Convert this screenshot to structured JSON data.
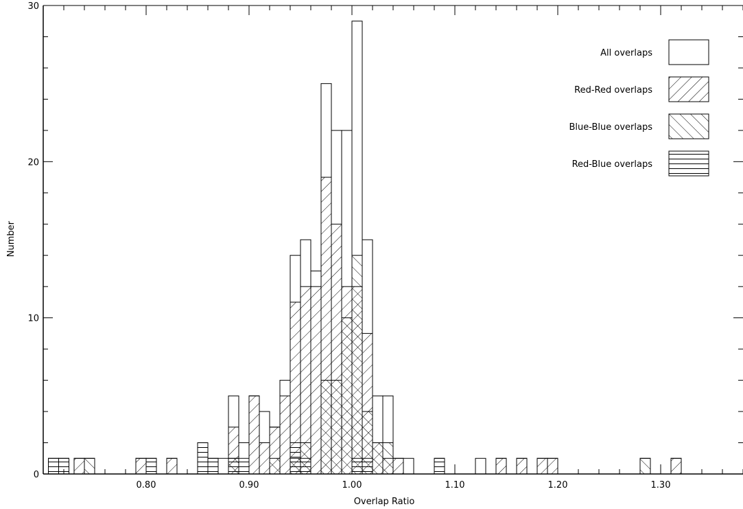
{
  "chart_data": {
    "type": "bar",
    "subtype": "step-histogram",
    "title": "",
    "xlabel": "Overlap Ratio",
    "ylabel": "Number",
    "xlim": [
      0.7,
      1.38
    ],
    "ylim": [
      0,
      30
    ],
    "x_ticks": [
      0.8,
      0.9,
      1.0,
      1.1,
      1.2,
      1.3
    ],
    "x_tick_labels": [
      "0.80",
      "0.90",
      "1.00",
      "1.10",
      "1.20",
      "1.30"
    ],
    "y_ticks": [
      0,
      10,
      20,
      30
    ],
    "y_tick_labels": [
      "0",
      "10",
      "20",
      "30"
    ],
    "y_minor_step": 2,
    "x_minor_step": 0.02,
    "bin_width": 0.01,
    "legend_position": "top-right",
    "grid": false,
    "series": [
      {
        "name": "All overlaps",
        "fill": "none",
        "bins": [
          [
            0.705,
            1
          ],
          [
            0.715,
            1
          ],
          [
            0.73,
            1
          ],
          [
            0.74,
            1
          ],
          [
            0.79,
            1
          ],
          [
            0.8,
            1
          ],
          [
            0.82,
            1
          ],
          [
            0.85,
            2
          ],
          [
            0.86,
            1
          ],
          [
            0.87,
            1
          ],
          [
            0.88,
            5
          ],
          [
            0.89,
            2
          ],
          [
            0.9,
            5
          ],
          [
            0.91,
            4
          ],
          [
            0.92,
            3
          ],
          [
            0.93,
            6
          ],
          [
            0.94,
            14
          ],
          [
            0.95,
            15
          ],
          [
            0.96,
            13
          ],
          [
            0.97,
            25
          ],
          [
            0.98,
            22
          ],
          [
            0.99,
            22
          ],
          [
            1.0,
            29
          ],
          [
            1.01,
            15
          ],
          [
            1.02,
            5
          ],
          [
            1.03,
            5
          ],
          [
            1.04,
            1
          ],
          [
            1.05,
            1
          ],
          [
            1.08,
            1
          ],
          [
            1.12,
            1
          ],
          [
            1.14,
            1
          ],
          [
            1.16,
            1
          ],
          [
            1.18,
            1
          ],
          [
            1.19,
            1
          ],
          [
            1.28,
            1
          ],
          [
            1.31,
            1
          ]
        ]
      },
      {
        "name": "Red-Red overlaps",
        "fill": "hatch-diagonal-up",
        "bins": [
          [
            0.73,
            1
          ],
          [
            0.79,
            1
          ],
          [
            0.82,
            1
          ],
          [
            0.88,
            3
          ],
          [
            0.9,
            5
          ],
          [
            0.91,
            2
          ],
          [
            0.92,
            3
          ],
          [
            0.93,
            5
          ],
          [
            0.94,
            11
          ],
          [
            0.95,
            12
          ],
          [
            0.96,
            12
          ],
          [
            0.97,
            19
          ],
          [
            0.98,
            16
          ],
          [
            0.99,
            12
          ],
          [
            1.0,
            12
          ],
          [
            1.01,
            9
          ],
          [
            1.02,
            2
          ],
          [
            1.03,
            1
          ],
          [
            1.04,
            1
          ],
          [
            1.14,
            1
          ],
          [
            1.16,
            1
          ],
          [
            1.18,
            1
          ],
          [
            1.19,
            1
          ],
          [
            1.31,
            1
          ]
        ]
      },
      {
        "name": "Blue-Blue overlaps",
        "fill": "hatch-diagonal-down",
        "bins": [
          [
            0.74,
            1
          ],
          [
            0.88,
            1
          ],
          [
            0.92,
            1
          ],
          [
            0.94,
            1
          ],
          [
            0.95,
            2
          ],
          [
            0.97,
            6
          ],
          [
            0.98,
            6
          ],
          [
            0.99,
            10
          ],
          [
            1.0,
            14
          ],
          [
            1.01,
            4
          ],
          [
            1.02,
            2
          ],
          [
            1.03,
            2
          ],
          [
            1.28,
            1
          ]
        ]
      },
      {
        "name": "Red-Blue overlaps",
        "fill": "hatch-horizontal",
        "bins": [
          [
            0.705,
            1
          ],
          [
            0.715,
            1
          ],
          [
            0.8,
            1
          ],
          [
            0.85,
            2
          ],
          [
            0.86,
            1
          ],
          [
            0.88,
            1
          ],
          [
            0.89,
            1
          ],
          [
            0.94,
            2
          ],
          [
            0.95,
            1
          ],
          [
            1.0,
            1
          ],
          [
            1.01,
            1
          ],
          [
            1.08,
            1
          ]
        ]
      }
    ]
  }
}
